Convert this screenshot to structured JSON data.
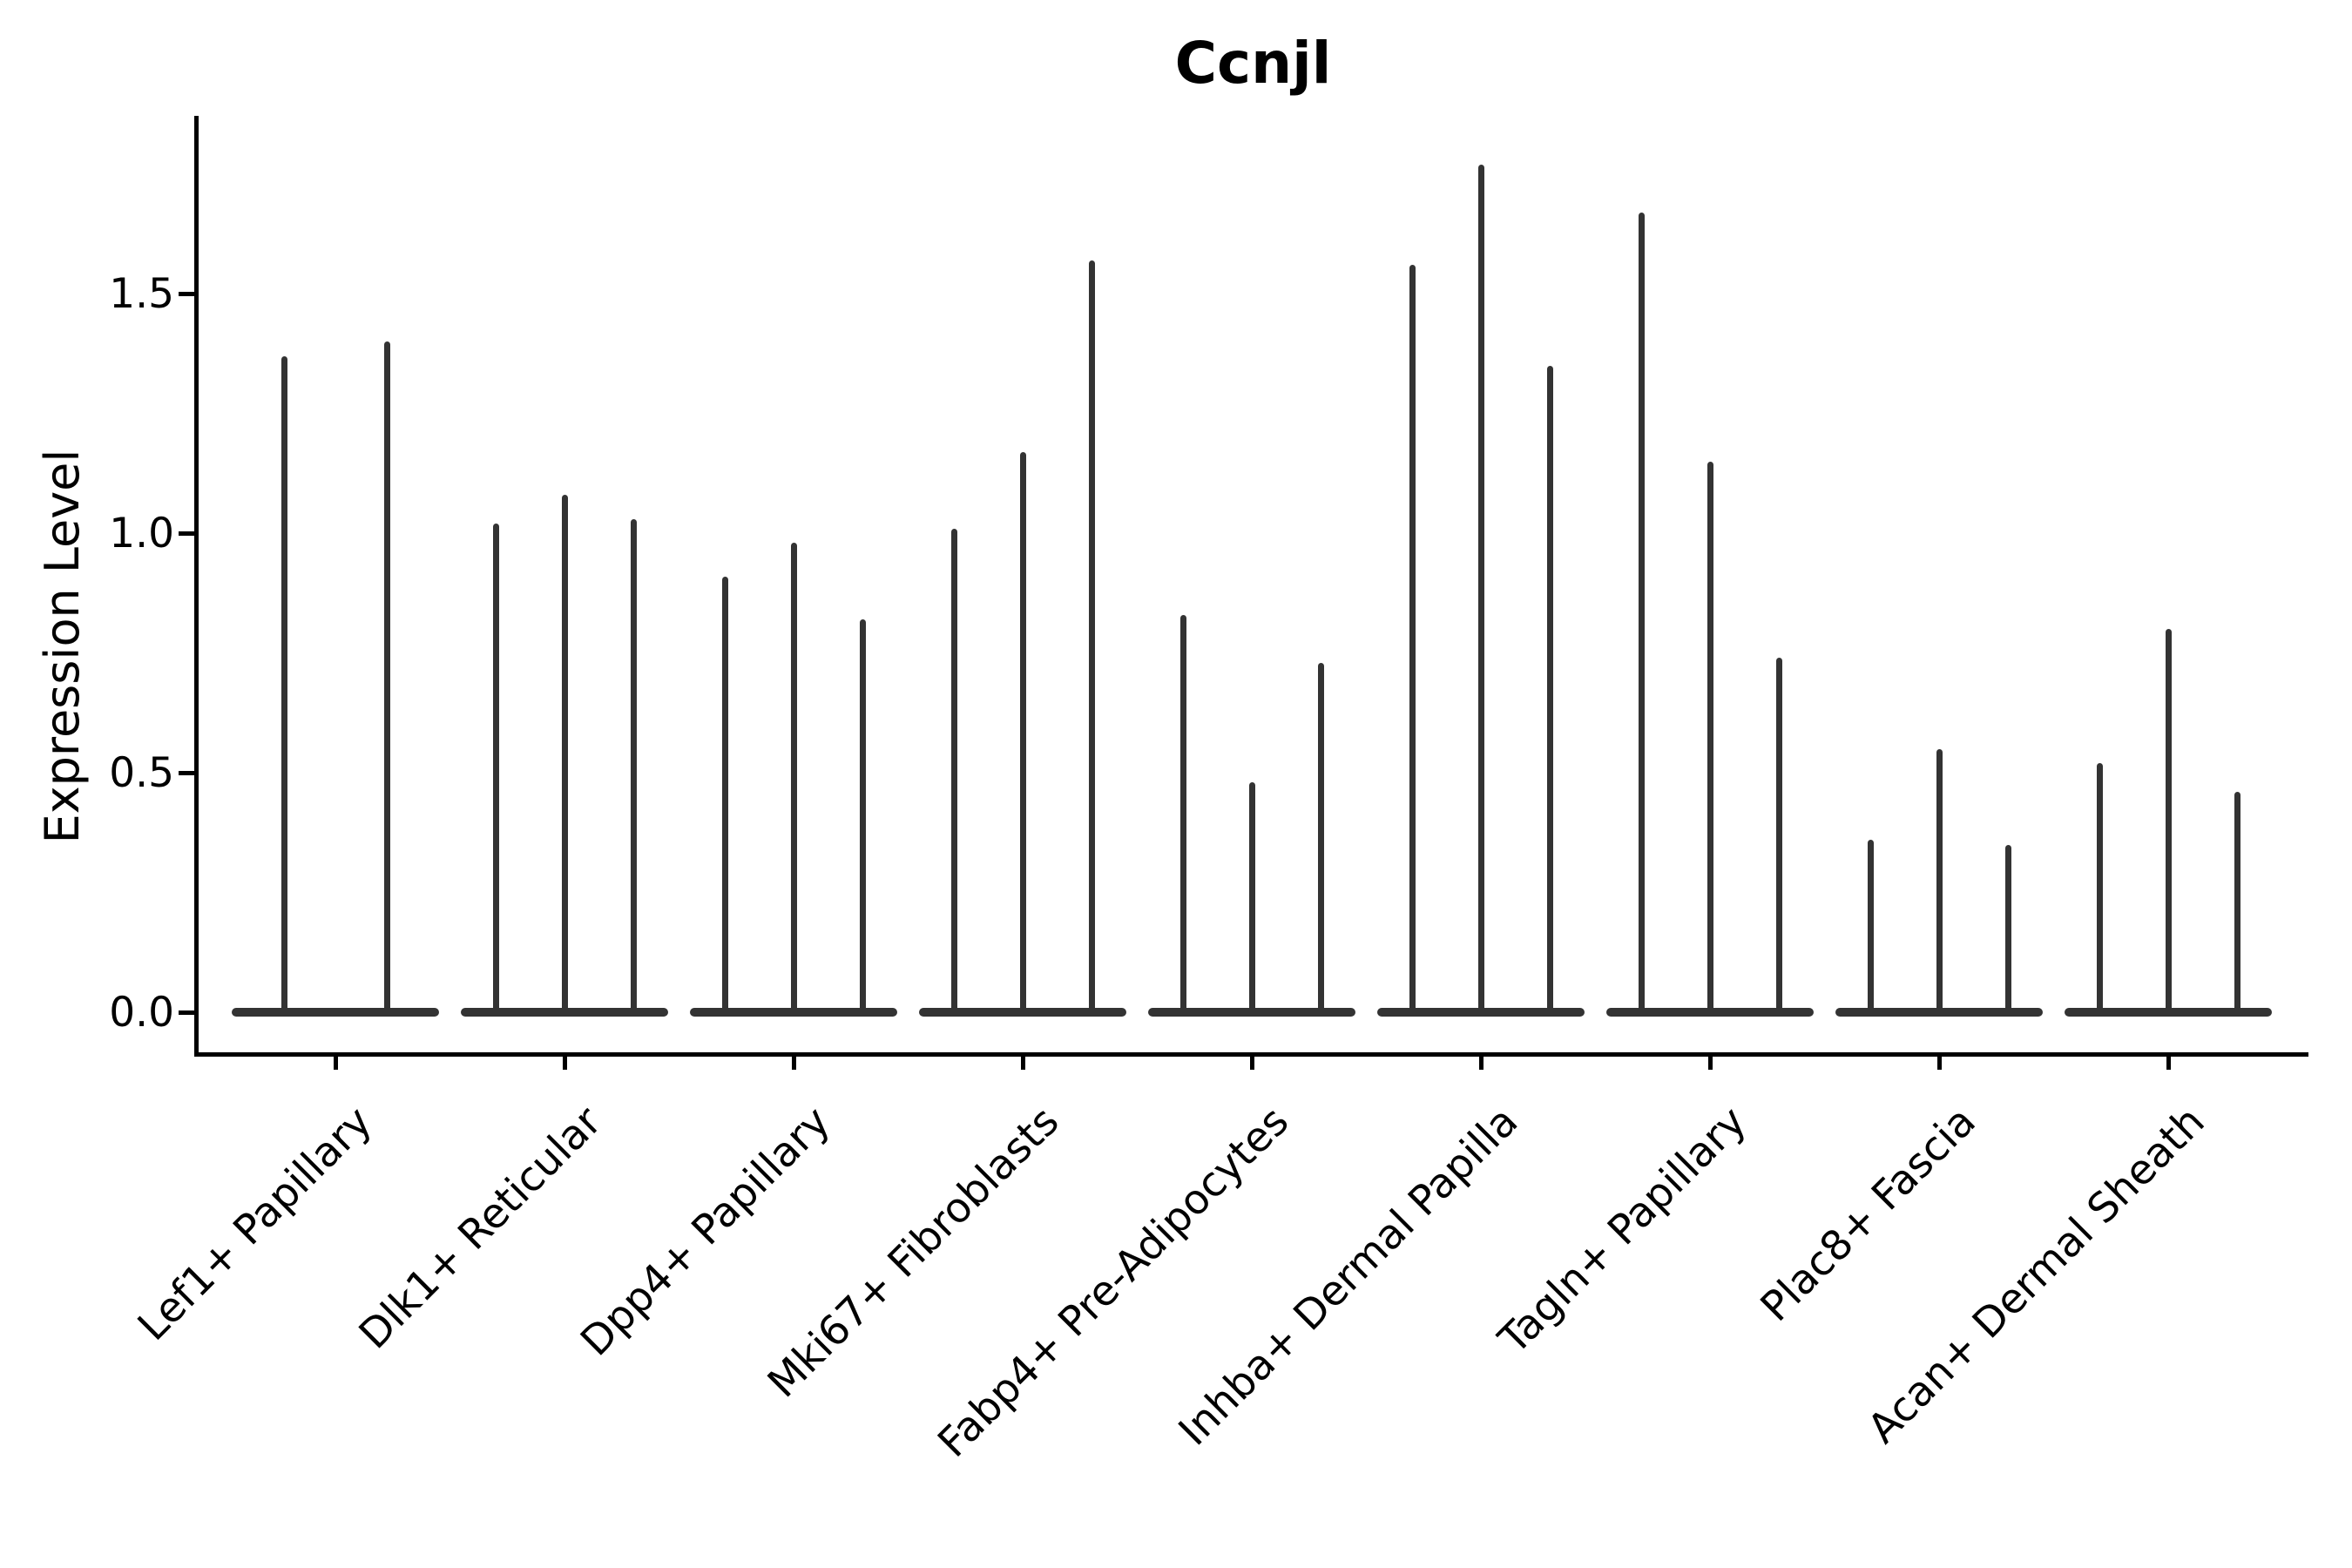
{
  "figure": {
    "title": "Ccnjl",
    "y_axis_label": "Expression Level"
  },
  "chart_data": {
    "type": "violin",
    "title": "Ccnjl",
    "xlabel": "",
    "ylabel": "Expression Level",
    "ylim": [
      -0.09,
      1.87
    ],
    "yticks": [
      0.0,
      0.5,
      1.0,
      1.5
    ],
    "ytick_labels": [
      "0.0",
      "0.5",
      "1.0",
      "1.5"
    ],
    "grid": false,
    "legend": false,
    "violin_color": "#333333",
    "baseline_value": 0.0,
    "categories": [
      "Lef1+ Papillary",
      "Dlk1+ Reticular",
      "Dpp4+ Papillary",
      "Mki67+ Fibroblasts",
      "Fabp4+ Pre-Adipocytes",
      "Inhba+ Dermal Papilla",
      "Tagln+ Papillary",
      "Plac8+ Fascia",
      "Acan+ Dermal Sheath"
    ],
    "groups": [
      {
        "category": "Lef1+ Papillary",
        "spike_maxima": [
          1.37,
          1.4
        ]
      },
      {
        "category": "Dlk1+ Reticular",
        "spike_maxima": [
          1.02,
          1.08,
          1.03
        ]
      },
      {
        "category": "Dpp4+ Papillary",
        "spike_maxima": [
          0.91,
          0.98,
          0.82
        ]
      },
      {
        "category": "Mki67+ Fibroblasts",
        "spike_maxima": [
          1.01,
          1.17,
          1.57
        ]
      },
      {
        "category": "Fabp4+ Pre-Adipocytes",
        "spike_maxima": [
          0.83,
          0.48,
          0.73
        ]
      },
      {
        "category": "Inhba+ Dermal Papilla",
        "spike_maxima": [
          1.56,
          1.77,
          1.35
        ]
      },
      {
        "category": "Tagln+ Papillary",
        "spike_maxima": [
          1.67,
          1.15,
          0.74
        ]
      },
      {
        "category": "Plac8+ Fascia",
        "spike_maxima": [
          0.36,
          0.55,
          0.35
        ]
      },
      {
        "category": "Acan+ Dermal Sheath",
        "spike_maxima": [
          0.52,
          0.8,
          0.46
        ]
      }
    ]
  }
}
